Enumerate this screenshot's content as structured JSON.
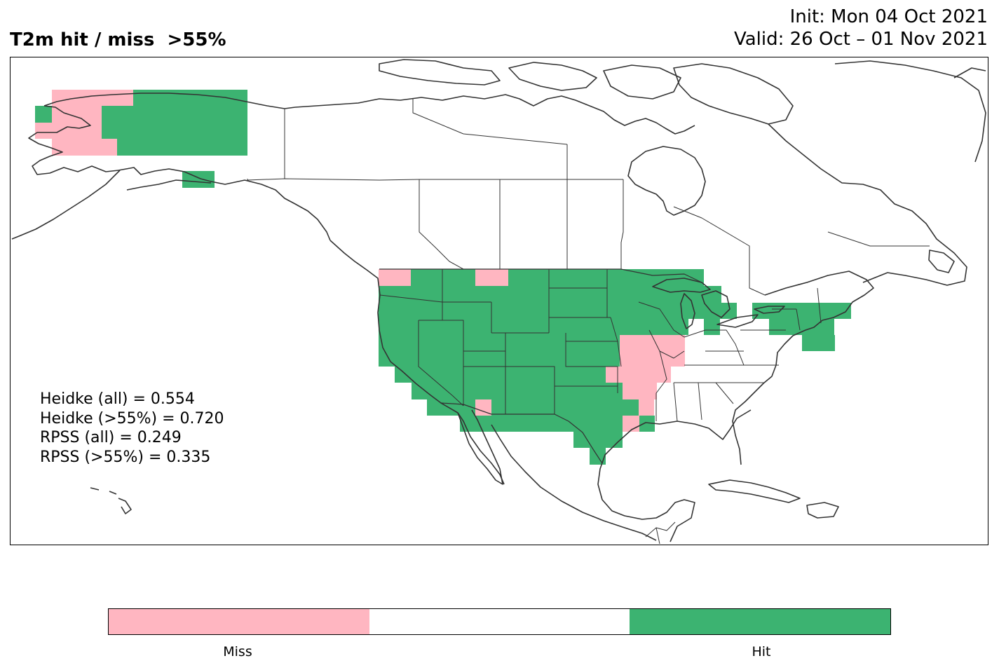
{
  "title": {
    "left": "T2m hit / miss  >55%",
    "init": "Init: Mon 04 Oct 2021",
    "valid": "Valid: 26 Oct – 01 Nov 2021"
  },
  "stats": [
    "Heidke (all) = 0.554",
    "Heidke (>55%) = 0.720",
    "RPSS (all) = 0.249",
    "RPSS (>55%) = 0.335"
  ],
  "colorbar": {
    "colors": {
      "miss": "#ffb6c1",
      "neutral": "#ffffff",
      "hit": "#3cb371"
    },
    "labels": {
      "miss": "Miss",
      "hit": "Hit"
    }
  },
  "map": {
    "region": "North America",
    "categories": [
      "Hit",
      "Miss"
    ]
  }
}
